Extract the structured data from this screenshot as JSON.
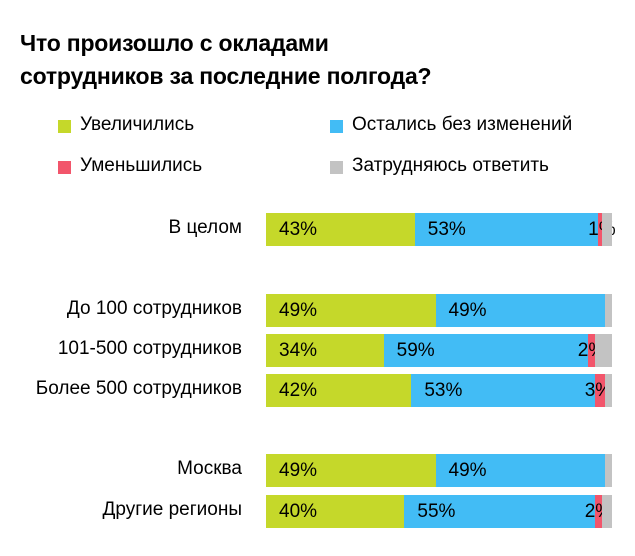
{
  "chart_data": {
    "type": "bar",
    "orientation": "horizontal",
    "stacked": true,
    "title": "Что произошло с окладами сотрудников за последние полгода?",
    "title_lines": [
      "Что произошло с окладами",
      "сотрудников за последние полгода?"
    ],
    "legend_position": "top",
    "categories": [
      "В целом",
      "До 100 сотрудников",
      "101-500 сотрудников",
      "Более 500 сотрудников",
      "Москва",
      "Другие регионы"
    ],
    "groups": [
      [
        0
      ],
      [
        1,
        2,
        3
      ],
      [
        4,
        5
      ]
    ],
    "xlim": [
      0,
      100
    ],
    "series": [
      {
        "name": "Увеличились",
        "color": "#c5d82a",
        "values": [
          43,
          49,
          34,
          42,
          49,
          40
        ],
        "labels": [
          "43%",
          "49%",
          "34%",
          "42%",
          "49%",
          "40%"
        ]
      },
      {
        "name": "Остались без изменений",
        "color": "#42bcf5",
        "values": [
          53,
          49,
          59,
          53,
          49,
          55
        ],
        "labels": [
          "53%",
          "49%",
          "59%",
          "53%",
          "49%",
          "55%"
        ]
      },
      {
        "name": "Уменьшились",
        "color": "#f2556b",
        "values": [
          1,
          0,
          2,
          3,
          0,
          2
        ],
        "labels": [
          "1%",
          "",
          "2%",
          "3%",
          "",
          "2%"
        ]
      },
      {
        "name": "Затрудняюсь ответить",
        "color": "#c3c3c3",
        "values": [
          3,
          2,
          5,
          2,
          2,
          3
        ],
        "labels": [
          "",
          "",
          "",
          "",
          "",
          ""
        ]
      }
    ],
    "legend_layout": [
      [
        0,
        1
      ],
      [
        2,
        3
      ]
    ]
  }
}
